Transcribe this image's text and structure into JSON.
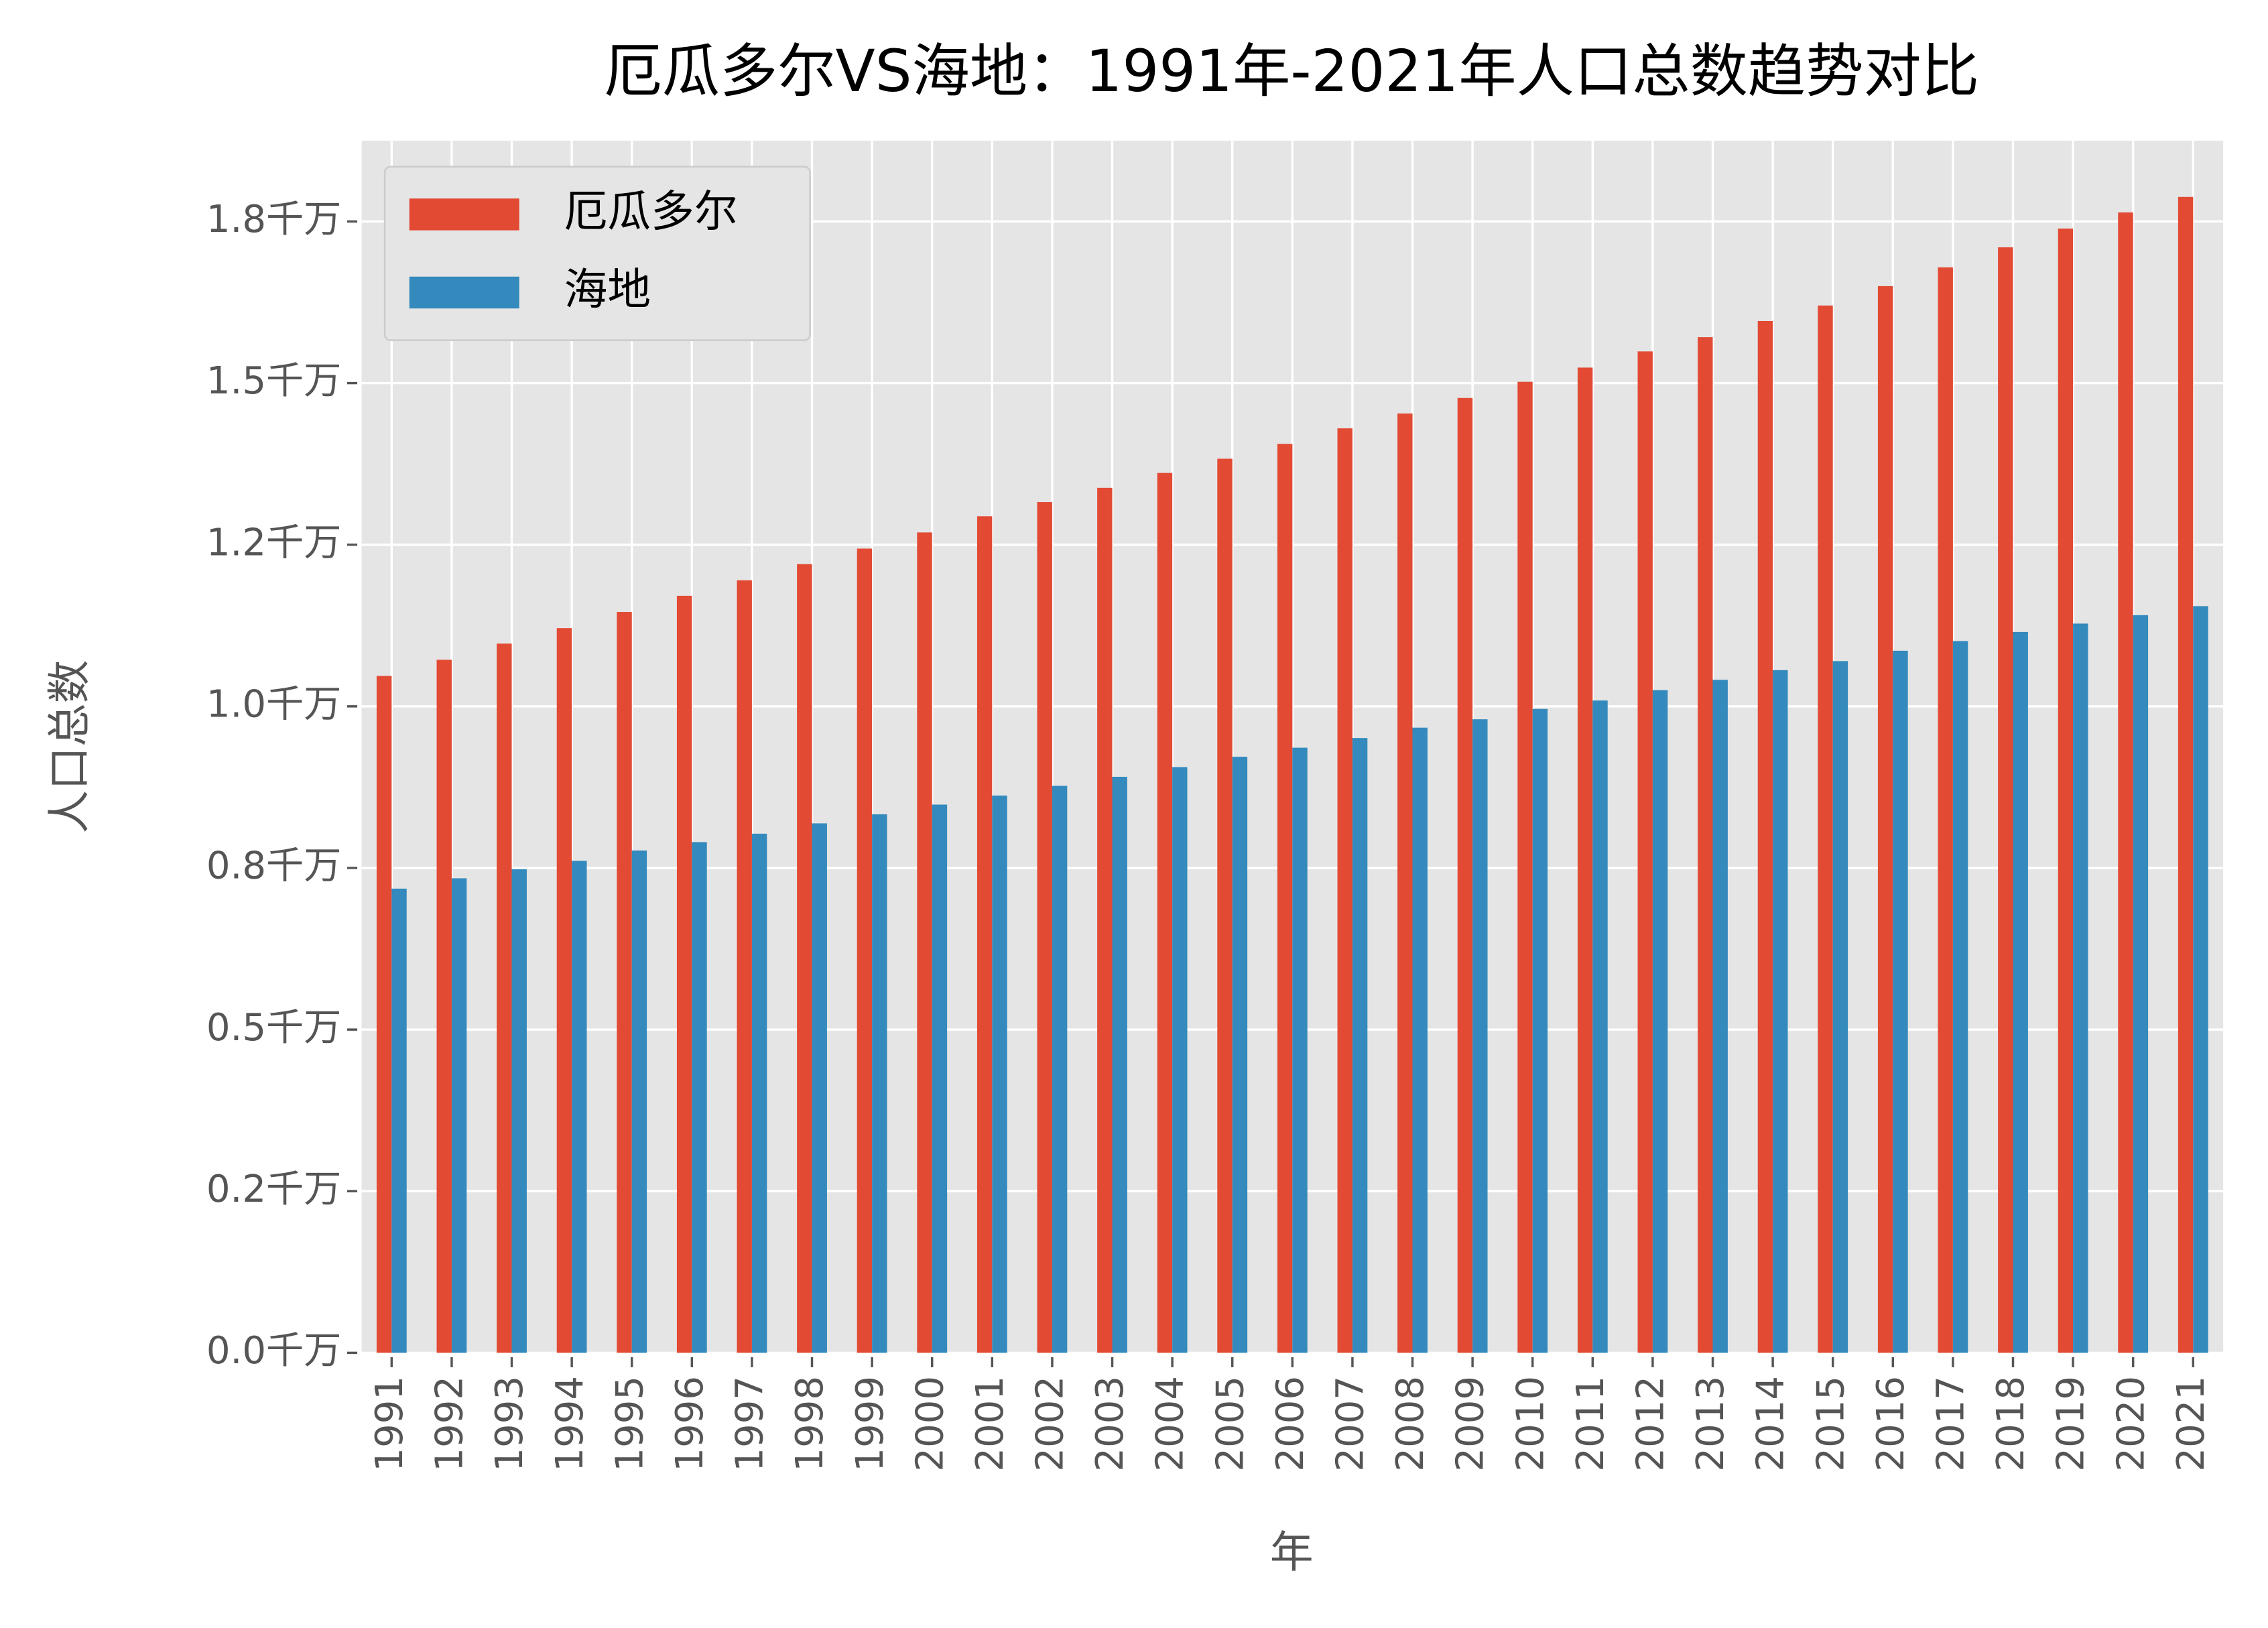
{
  "chart_data": {
    "type": "bar",
    "title": "厄瓜多尔VS海地：1991年-2021年人口总数趋势对比",
    "x_label": "年",
    "y_label": "人口总数",
    "categories": [
      "1991",
      "1992",
      "1993",
      "1994",
      "1995",
      "1996",
      "1997",
      "1998",
      "1999",
      "2000",
      "2001",
      "2002",
      "2003",
      "2004",
      "2005",
      "2006",
      "2007",
      "2008",
      "2009",
      "2010",
      "2011",
      "2012",
      "2013",
      "2014",
      "2015",
      "2016",
      "2017",
      "2018",
      "2019",
      "2020",
      "2021"
    ],
    "series": [
      {
        "name": "厄瓜多尔",
        "color": "#E24A33",
        "values": [
          1.047,
          1.072,
          1.097,
          1.121,
          1.146,
          1.171,
          1.195,
          1.22,
          1.244,
          1.269,
          1.294,
          1.316,
          1.338,
          1.361,
          1.383,
          1.406,
          1.43,
          1.453,
          1.477,
          1.502,
          1.524,
          1.549,
          1.571,
          1.596,
          1.62,
          1.65,
          1.679,
          1.71,
          1.739,
          1.764,
          1.788
        ]
      },
      {
        "name": "海地",
        "color": "#348ABD",
        "values": [
          0.718,
          0.734,
          0.748,
          0.761,
          0.777,
          0.79,
          0.803,
          0.819,
          0.833,
          0.848,
          0.862,
          0.877,
          0.891,
          0.906,
          0.922,
          0.936,
          0.951,
          0.967,
          0.98,
          0.996,
          1.009,
          1.025,
          1.041,
          1.056,
          1.07,
          1.086,
          1.101,
          1.115,
          1.128,
          1.141,
          1.155
        ]
      }
    ],
    "ylim": [
      0,
      1.875
    ],
    "yticks": [
      {
        "value": 0,
        "label": "0.0千万"
      },
      {
        "value": 0.25,
        "label": "0.2千万"
      },
      {
        "value": 0.5,
        "label": "0.5千万"
      },
      {
        "value": 0.75,
        "label": "0.8千万"
      },
      {
        "value": 1.0,
        "label": "1.0千万"
      },
      {
        "value": 1.25,
        "label": "1.2千万"
      },
      {
        "value": 1.5,
        "label": "1.5千万"
      },
      {
        "value": 1.75,
        "label": "1.8千万"
      }
    ],
    "grid": true,
    "legend": "upper left"
  }
}
